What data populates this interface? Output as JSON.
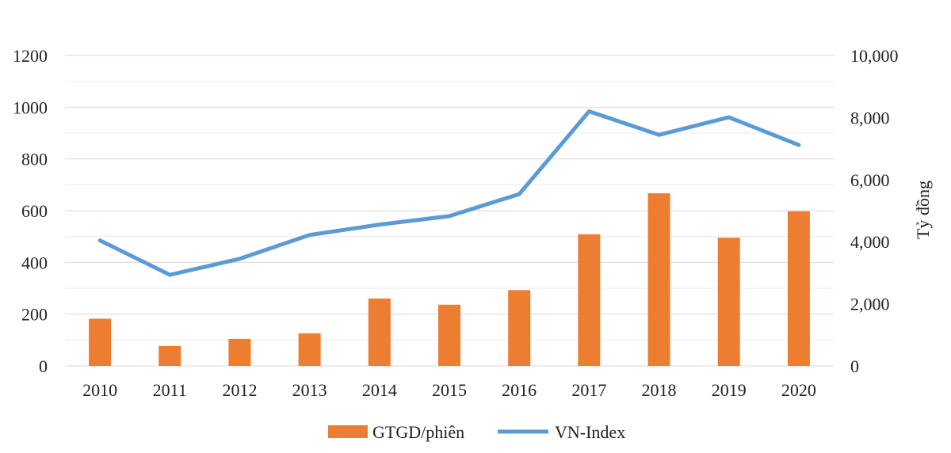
{
  "chart_data": {
    "type": "bar+line",
    "title": "",
    "xlabel": "",
    "ylabel_left": "",
    "ylabel_right": "Tỷ đồng",
    "categories": [
      "2010",
      "2011",
      "2012",
      "2013",
      "2014",
      "2015",
      "2016",
      "2017",
      "2018",
      "2019",
      "2020"
    ],
    "left_axis": {
      "min": 0,
      "max": 1200,
      "ticks": [
        0,
        200,
        400,
        600,
        800,
        1000,
        1200
      ],
      "tick_labels": [
        "0",
        "200",
        "400",
        "600",
        "800",
        "1000",
        "1200"
      ]
    },
    "right_axis": {
      "min": 0,
      "max": 10000,
      "ticks": [
        0,
        2000,
        4000,
        6000,
        8000,
        10000
      ],
      "tick_labels": [
        "0",
        "2,000",
        "4,000",
        "6,000",
        "8,000",
        "10,000"
      ]
    },
    "series": [
      {
        "name": "GTGD/phiên",
        "type": "bar",
        "axis": "right",
        "color": "#ED7D31",
        "values": [
          1520,
          640,
          870,
          1050,
          2170,
          1970,
          2440,
          4240,
          5560,
          4130,
          4980
        ]
      },
      {
        "name": "VN-Index",
        "type": "line",
        "axis": "left",
        "color": "#5B9BD5",
        "values": [
          485,
          352,
          414,
          506,
          546,
          579,
          664,
          984,
          893,
          961,
          854
        ]
      }
    ],
    "legend": "bottom-center",
    "grid": true
  }
}
